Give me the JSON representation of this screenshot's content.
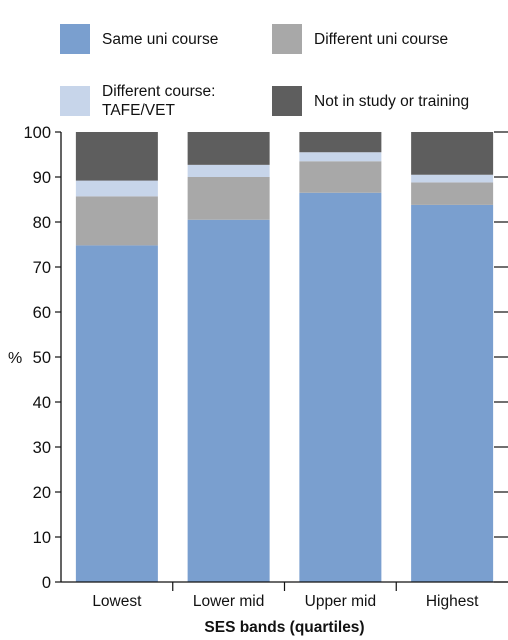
{
  "colors": {
    "same_uni": "#7a9fcf",
    "different_uni": "#a8a8a8",
    "tafe_vet": "#c7d5ea",
    "not_in_study": "#5e5e5e",
    "axis": "#111111"
  },
  "legend": {
    "items": [
      {
        "label": "Same uni course",
        "color": "#7a9fcf"
      },
      {
        "label": "Different uni course",
        "color": "#a8a8a8"
      },
      {
        "label": "Different course:",
        "label2": "TAFE/VET",
        "color": "#c7d5ea"
      },
      {
        "label": "Not in study or training",
        "color": "#5e5e5e"
      }
    ]
  },
  "chart_data": {
    "type": "bar",
    "stacked": true,
    "title": "",
    "xlabel": "SES bands (quartiles)",
    "ylabel": "%",
    "ylim": [
      0,
      100
    ],
    "yticks": [
      0,
      10,
      20,
      30,
      40,
      50,
      60,
      70,
      80,
      90,
      100
    ],
    "categories": [
      "Lowest",
      "Lower mid",
      "Upper mid",
      "Highest"
    ],
    "series": [
      {
        "name": "Same uni course",
        "values": [
          74.8,
          80.5,
          86.5,
          83.8
        ]
      },
      {
        "name": "Different uni course",
        "values": [
          10.9,
          9.5,
          7.0,
          5.0
        ]
      },
      {
        "name": "Different course: TAFE/VET",
        "values": [
          3.5,
          2.7,
          2.0,
          1.7
        ]
      },
      {
        "name": "Not in study or training",
        "values": [
          10.8,
          7.3,
          4.5,
          9.5
        ]
      }
    ],
    "legend_position": "top",
    "grid": false
  }
}
